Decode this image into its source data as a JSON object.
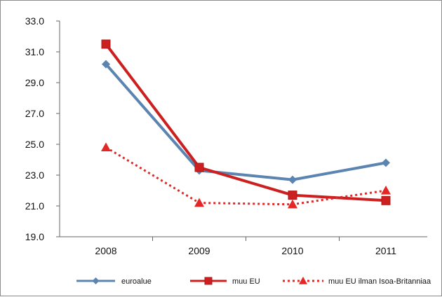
{
  "chart_data": {
    "type": "line",
    "title": "",
    "xlabel": "",
    "ylabel": "",
    "categories": [
      "2008",
      "2009",
      "2010",
      "2011"
    ],
    "ylim": [
      19.0,
      33.0
    ],
    "yticks": [
      "19.0",
      "21.0",
      "23.0",
      "25.0",
      "27.0",
      "29.0",
      "31.0",
      "33.0"
    ],
    "grid": false,
    "legend_position": "bottom",
    "series": [
      {
        "name": "euroalue",
        "values": [
          30.2,
          23.3,
          22.7,
          23.8
        ],
        "color": "#5b84b1",
        "marker": "diamond",
        "dash": "solid"
      },
      {
        "name": "muu EU",
        "values": [
          31.5,
          23.5,
          21.7,
          21.35
        ],
        "color": "#cc1f1f",
        "marker": "square",
        "dash": "solid"
      },
      {
        "name": "muu EU ilman Isoa-Britanniaa",
        "values": [
          24.8,
          21.2,
          21.1,
          22.0
        ],
        "color": "#e32626",
        "marker": "triangle",
        "dash": "dotted"
      }
    ]
  }
}
